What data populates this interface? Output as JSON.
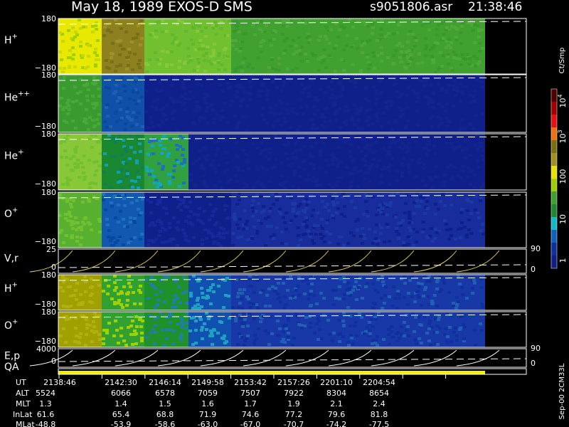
{
  "header": {
    "title": "May 18, 1989   EXOS-D SMS",
    "file": "s9051806.asr",
    "time": "21:38:46"
  },
  "panels": [
    {
      "label": "H",
      "sup": "+",
      "ticks": [
        "180",
        "−180"
      ]
    },
    {
      "label": "He",
      "sup": "++",
      "ticks": [
        "180",
        "−180"
      ]
    },
    {
      "label": "He",
      "sup": "+",
      "ticks": [
        "180",
        "−180"
      ]
    },
    {
      "label": "O",
      "sup": "+",
      "ticks": [
        "180",
        "−180"
      ]
    },
    {
      "label": "V,r",
      "ticks": [
        "25",
        "0"
      ],
      "right_ticks": [
        "90",
        "0"
      ]
    },
    {
      "label": "H",
      "sup": "+",
      "ticks": [
        "180",
        "−180"
      ]
    },
    {
      "label": "O",
      "sup": "+",
      "ticks": [
        "180",
        "−180"
      ]
    },
    {
      "label": "E,p",
      "ticks": [
        "4000",
        "0"
      ],
      "right_ticks": [
        "90",
        "0"
      ]
    },
    {
      "label": "QA"
    }
  ],
  "colorbar": {
    "unit": "Ct/Smp",
    "labels": [
      {
        "base": "10",
        "sup": "4"
      },
      {
        "base": "10",
        "sup": "3"
      },
      "100",
      "10",
      "1"
    ]
  },
  "table": {
    "rows": [
      {
        "label": "UT",
        "values": [
          "2138:46",
          "2142:30",
          "2146:14",
          "2149:58",
          "2153:42",
          "2157:26",
          "2201:10",
          "2204:54"
        ]
      },
      {
        "label": "ALT",
        "values": [
          "5524",
          "6066",
          "6578",
          "7059",
          "7507",
          "7922",
          "8304",
          "8654"
        ]
      },
      {
        "label": "MLT",
        "values": [
          "1.3",
          "1.4",
          "1.5",
          "1.6",
          "1.7",
          "1.9",
          "2.1",
          "2.4"
        ]
      },
      {
        "label": "InLat",
        "values": [
          "61.6",
          "65.4",
          "68.8",
          "71.9",
          "74.6",
          "77.2",
          "79.6",
          "81.8"
        ]
      },
      {
        "label": "MLat",
        "values": [
          "-48.8",
          "-53.9",
          "-58.6",
          "-63.0",
          "-67.0",
          "-70.7",
          "-74.2",
          "-77.5"
        ]
      }
    ]
  },
  "footer_note": "Sep-00 2CM33L"
}
